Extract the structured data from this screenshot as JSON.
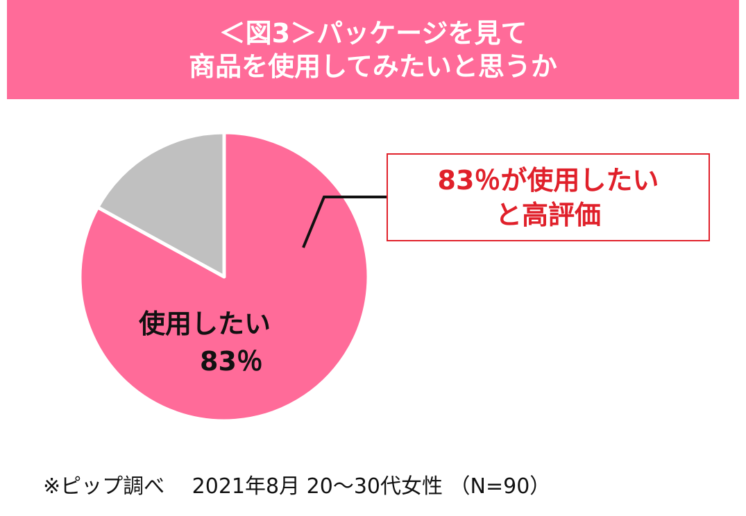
{
  "header": {
    "line1": "＜図3＞パッケージを見て",
    "line2": "商品を使用してみたいと思うか"
  },
  "callout": {
    "line1": "83％が使用したい",
    "line2": "と高評価"
  },
  "slice_label": {
    "name": "使用したい",
    "pct": "83％"
  },
  "footnote": "※ピップ調べ　 2021年8月 20～30代女性 （N=90）",
  "colors": {
    "header_bg": "#ff6b99",
    "pie_main": "#ff6b99",
    "pie_other": "#c0c0c0",
    "callout": "#e0202a"
  },
  "chart_data": {
    "type": "pie",
    "title": "＜図3＞パッケージを見て商品を使用してみたいと思うか",
    "slices": [
      {
        "label": "使用したい",
        "value": 83,
        "color": "#ff6b99"
      },
      {
        "label": "",
        "value": 17,
        "color": "#c0c0c0"
      }
    ],
    "legend": "none"
  }
}
